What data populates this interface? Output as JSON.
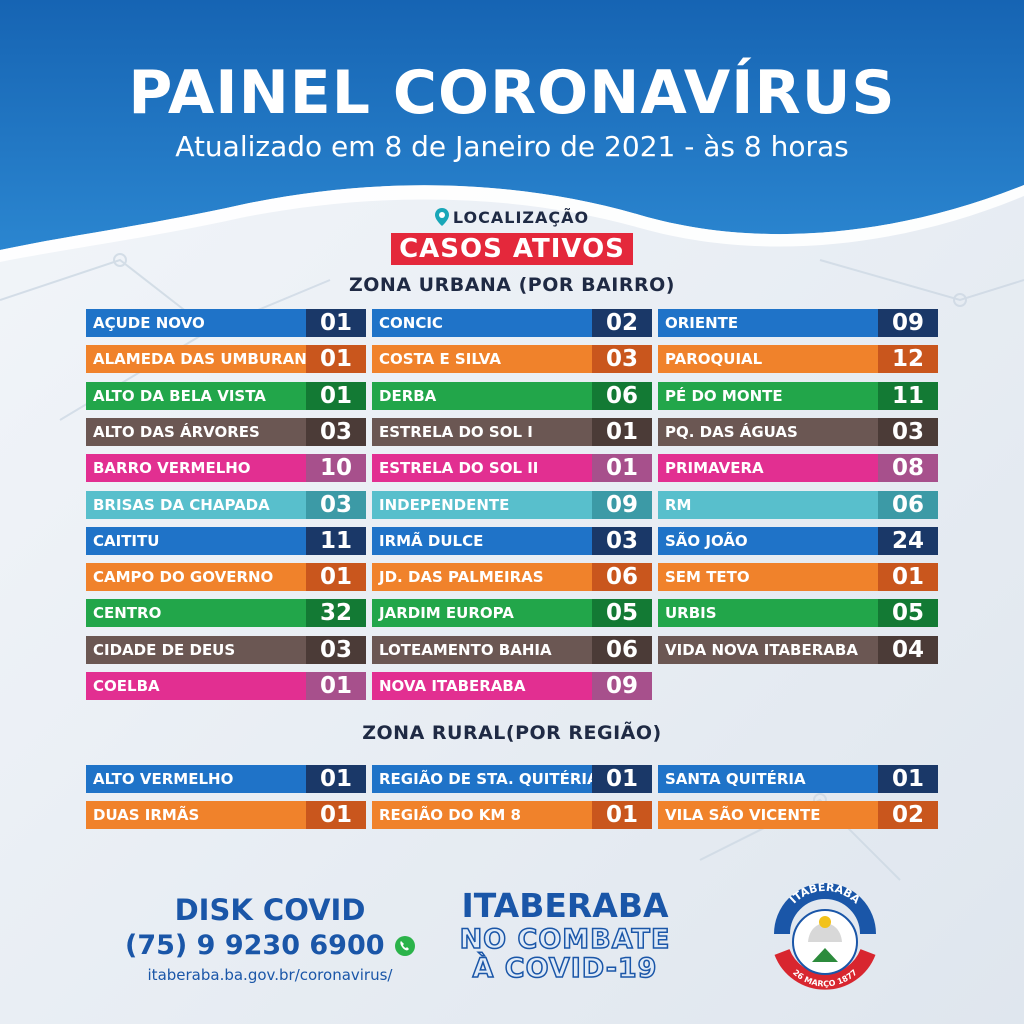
{
  "header": {
    "title": "PAINEL CORONAVÍRUS",
    "subtitle": "Atualizado em 8 de Janeiro de 2021 - às 8 horas"
  },
  "location_label": "LOCALIZAÇÃO",
  "badge": "CASOS ATIVOS",
  "urban": {
    "title": "ZONA URBANA (POR BAIRRO)",
    "col1": [
      {
        "name": "AÇUDE NOVO",
        "count": "01",
        "color": "blue"
      },
      {
        "name": "ALAMEDA DAS UMBURANAS",
        "count": "01",
        "color": "orange"
      },
      {
        "name": "ALTO DA BELA VISTA",
        "count": "01",
        "color": "green"
      },
      {
        "name": "ALTO DAS ÁRVORES",
        "count": "03",
        "color": "brown"
      },
      {
        "name": "BARRO VERMELHO",
        "count": "10",
        "color": "pink"
      },
      {
        "name": "BRISAS DA CHAPADA",
        "count": "03",
        "color": "teal"
      },
      {
        "name": "CAITITU",
        "count": "11",
        "color": "blue"
      },
      {
        "name": "CAMPO DO GOVERNO",
        "count": "01",
        "color": "orange"
      },
      {
        "name": "CENTRO",
        "count": "32",
        "color": "green"
      },
      {
        "name": "CIDADE DE DEUS",
        "count": "03",
        "color": "brown"
      },
      {
        "name": "COELBA",
        "count": "01",
        "color": "pink"
      }
    ],
    "col2": [
      {
        "name": "CONCIC",
        "count": "02",
        "color": "blue"
      },
      {
        "name": "COSTA E SILVA",
        "count": "03",
        "color": "orange"
      },
      {
        "name": "DERBA",
        "count": "06",
        "color": "green"
      },
      {
        "name": "ESTRELA DO SOL I",
        "count": "01",
        "color": "brown"
      },
      {
        "name": "ESTRELA DO SOL II",
        "count": "01",
        "color": "pink"
      },
      {
        "name": "INDEPENDENTE",
        "count": "09",
        "color": "teal"
      },
      {
        "name": "IRMÃ DULCE",
        "count": "03",
        "color": "blue"
      },
      {
        "name": "JD. DAS PALMEIRAS",
        "count": "06",
        "color": "orange"
      },
      {
        "name": "JARDIM EUROPA",
        "count": "05",
        "color": "green"
      },
      {
        "name": "LOTEAMENTO BAHIA",
        "count": "06",
        "color": "brown"
      },
      {
        "name": "NOVA ITABERABA",
        "count": "09",
        "color": "pink"
      }
    ],
    "col3": [
      {
        "name": "ORIENTE",
        "count": "09",
        "color": "blue"
      },
      {
        "name": "PAROQUIAL",
        "count": "12",
        "color": "orange"
      },
      {
        "name": "PÉ DO MONTE",
        "count": "11",
        "color": "green"
      },
      {
        "name": "PQ. DAS ÁGUAS",
        "count": "03",
        "color": "brown"
      },
      {
        "name": "PRIMAVERA",
        "count": "08",
        "color": "pink"
      },
      {
        "name": "RM",
        "count": "06",
        "color": "teal"
      },
      {
        "name": "SÃO JOÃO",
        "count": "24",
        "color": "blue"
      },
      {
        "name": "SEM TETO",
        "count": "01",
        "color": "orange"
      },
      {
        "name": "URBIS",
        "count": "05",
        "color": "green"
      },
      {
        "name": "VIDA NOVA ITABERABA",
        "count": "04",
        "color": "brown"
      }
    ]
  },
  "rural": {
    "title": "ZONA RURAL(POR REGIÃO)",
    "col1": [
      {
        "name": "ALTO VERMELHO",
        "count": "01",
        "color": "blue"
      },
      {
        "name": "DUAS IRMÃS",
        "count": "01",
        "color": "orange"
      }
    ],
    "col2": [
      {
        "name": "REGIÃO DE STA. QUITÉRIA",
        "count": "01",
        "color": "blue"
      },
      {
        "name": "REGIÃO DO KM 8",
        "count": "01",
        "color": "orange"
      }
    ],
    "col3": [
      {
        "name": "SANTA QUITÉRIA",
        "count": "01",
        "color": "blue"
      },
      {
        "name": "VILA SÃO VICENTE",
        "count": "02",
        "color": "orange"
      }
    ]
  },
  "footer": {
    "disk": "DISK COVID",
    "phone": "(75) 9 9230 6900",
    "site": "itaberaba.ba.gov.br/coronavirus/",
    "campaign_city": "ITABERABA",
    "campaign_line1": "NO COMBATE",
    "campaign_line2": "À COVID-19",
    "seal_top": "ITABERABA",
    "seal_bottom": "26 MARÇO 1877"
  },
  "colors": {
    "header_blue": "#1a6fbd",
    "badge_red": "#e4283b",
    "text_dark": "#1f2a44",
    "footer_blue": "#1a56a8"
  }
}
